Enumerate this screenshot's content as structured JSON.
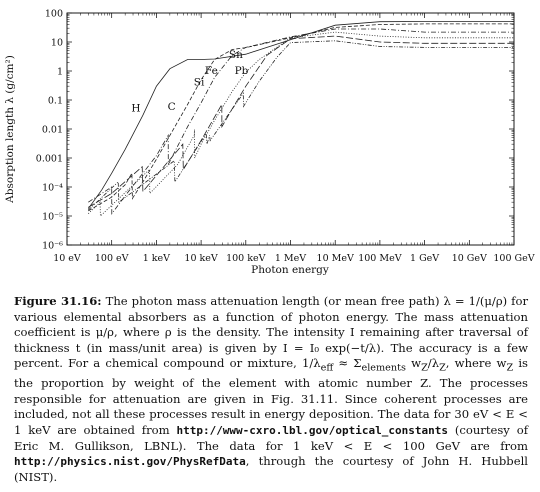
{
  "chart_data": {
    "type": "line",
    "xscale": "log",
    "yscale": "log",
    "xlim": [
      10,
      100000000000
    ],
    "ylim": [
      1e-06,
      100
    ],
    "xlabel": "Photon energy",
    "ylabel": "Absorption length λ (g/cm²)",
    "x_tick_labels": [
      "10 eV",
      "100 eV",
      "1 keV",
      "10 keV",
      "100 keV",
      "1 MeV",
      "10 MeV",
      "100 MeV",
      "1 GeV",
      "10 GeV",
      "100 GeV"
    ],
    "y_tick_labels": [
      "10⁻⁶",
      "10⁻⁵",
      "10⁻⁴",
      "0.001",
      "0.01",
      "0.1",
      "1",
      "10",
      "100"
    ],
    "element_labels": [
      {
        "text": "H",
        "x": 350,
        "y": 0.04
      },
      {
        "text": "C",
        "x": 2200,
        "y": 0.045
      },
      {
        "text": "Si",
        "x": 9000,
        "y": 0.32
      },
      {
        "text": "Fe",
        "x": 17000,
        "y": 0.8
      },
      {
        "text": "Pb",
        "x": 80000,
        "y": 0.8
      },
      {
        "text": "Sn",
        "x": 60000,
        "y": 2.8
      }
    ],
    "series": [
      {
        "name": "H",
        "style": "solid",
        "x": [
          30,
          60,
          100,
          200,
          500,
          1000,
          2000,
          5000,
          10000,
          20000,
          100000,
          1000000,
          10000000,
          100000000,
          1000000000,
          100000000000
        ],
        "y": [
          1.8e-05,
          8e-05,
          0.0003,
          0.002,
          0.03,
          0.3,
          1.2,
          2.5,
          2.5,
          2.6,
          3.8,
          12,
          38,
          50,
          51,
          51
        ]
      },
      {
        "name": "C",
        "style": "dashed",
        "x": [
          30,
          100,
          200,
          283,
          290,
          500,
          1000,
          2000,
          5000,
          10000,
          20000,
          50000,
          100000,
          1000000,
          10000000,
          100000000,
          1000000000,
          100000000000
        ],
        "y": [
          1.5e-05,
          4.5e-05,
          0.00012,
          0.0003,
          4e-05,
          0.00015,
          0.0009,
          0.006,
          0.07,
          0.5,
          2.5,
          5.5,
          6.4,
          14,
          32,
          40,
          42,
          42
        ]
      },
      {
        "name": "Si",
        "style": "dash-dot",
        "x": [
          30,
          100,
          100.5,
          200,
          500,
          1000,
          1839,
          1850,
          5000,
          10000,
          20000,
          50000,
          100000,
          1000000,
          10000000,
          100000000,
          1000000000,
          100000000000
        ],
        "y": [
          3e-05,
          0.0001,
          1.2e-05,
          5e-05,
          0.0003,
          0.0012,
          0.006,
          0.0006,
          0.012,
          0.08,
          0.6,
          3.5,
          6.5,
          15,
          28,
          28,
          22,
          22
        ]
      },
      {
        "name": "Fe",
        "style": "dotted",
        "x": [
          30,
          55,
          56,
          700,
          710,
          3000,
          7000,
          7112,
          7200,
          10000,
          20000,
          50000,
          100000,
          200000,
          1000000,
          10000000,
          100000000,
          1000000000,
          100000000000
        ],
        "y": [
          1.2e-05,
          3e-05,
          1e-05,
          0.0004,
          6e-05,
          0.0006,
          0.006,
          0.0095,
          0.001,
          0.003,
          0.02,
          0.2,
          0.9,
          2.5,
          14,
          22,
          16,
          14,
          14
        ]
      },
      {
        "name": "Sn",
        "style": "long-dash",
        "x": [
          30,
          100,
          480,
          500,
          3900,
          4000,
          10000,
          29000,
          29200,
          50000,
          100000,
          300000,
          1000000,
          10000000,
          100000000,
          1000000000,
          100000000000
        ],
        "y": [
          2e-05,
          6e-05,
          0.0005,
          7e-05,
          0.003,
          0.0004,
          0.004,
          0.07,
          0.012,
          0.05,
          0.3,
          3.5,
          13,
          16,
          10,
          9,
          9
        ]
      },
      {
        "name": "Pb",
        "style": "dash-dot-dot",
        "x": [
          30,
          140,
          145,
          2500,
          2600,
          13000,
          13500,
          15500,
          16000,
          88000,
          89000,
          200000,
          500000,
          1000000,
          10000000,
          100000000,
          1000000000,
          100000000000
        ],
        "y": [
          1.6e-05,
          0.00015,
          3e-05,
          0.0008,
          0.00015,
          0.007,
          0.003,
          0.006,
          0.004,
          0.17,
          0.06,
          0.45,
          3,
          9.5,
          11,
          7,
          6.5,
          6.5
        ]
      }
    ]
  },
  "caption": {
    "figure_label": "Figure 31.16:",
    "p1": " The photon mass attenuation length (or mean free path) λ = 1/(μ/ρ) for various elemental absorbers as a function of photon energy. The mass attenuation coefficient is μ/ρ, where ρ is the density. The intensity I remaining after traversal of thickness t (in mass/unit area) is given by I = I₀ exp(−t/λ). The accuracy is a few percent. For a chemical compound or mixture, 1/λ",
    "eff_sub": "eff",
    "p2": " ≈ Σ",
    "elements_sub": "elements",
    "p3": " w",
    "z_sub1": "Z",
    "p4": "/λ",
    "z_sub2": "Z",
    "p5": ", where w",
    "z_sub3": "Z",
    "p6": " is the proportion by weight of the element with atomic number Z. The processes responsible for attenuation are given in Fig. 31.11. Since coherent processes are included, not all these processes result in energy deposition. The data for 30 eV < E < 1 keV are obtained from ",
    "url1": "http://www-cxro.lbl.gov/optical_constants",
    "p7": " (courtesy of Eric M. Gullikson, LBNL). The data for 1 keV < E < 100 GeV are from ",
    "url2": "http://physics.nist.gov/PhysRefData",
    "p8": ", through the courtesy of John H. Hubbell (NIST)."
  }
}
